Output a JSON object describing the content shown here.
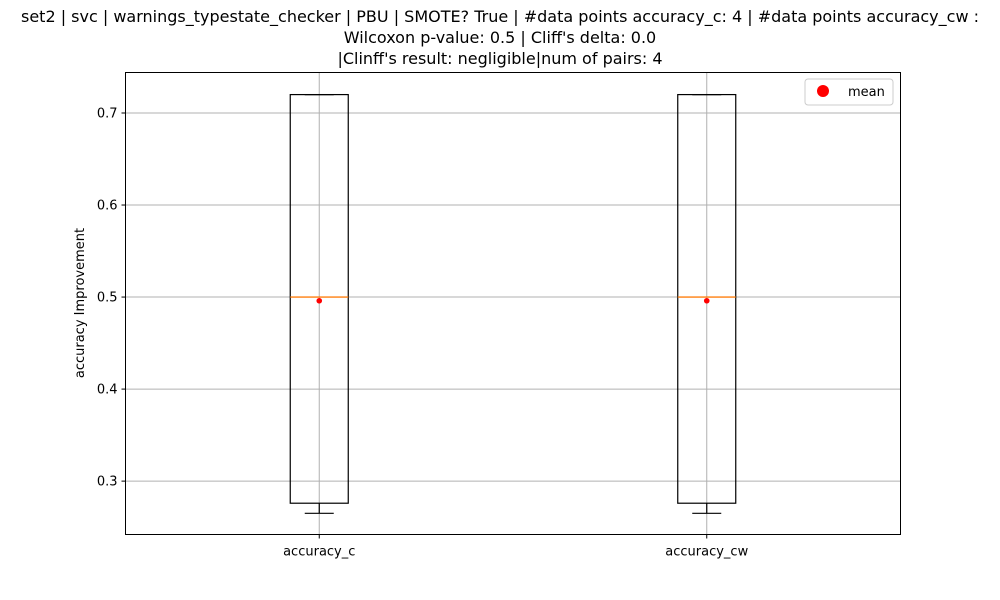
{
  "chart_data": {
    "type": "box",
    "title_lines": [
      "set2 | svc | warnings_typestate_checker | PBU | SMOTE? True | #data points accuracy_c: 4 | #data points accuracy_cw :",
      "Wilcoxon p-value: 0.5 | Cliff's delta: 0.0",
      "|Clinff's result: negligible|num of pairs: 4"
    ],
    "xlabel": "",
    "ylabel": "accuracy Improvement",
    "ylim": [
      0.242,
      0.744
    ],
    "yticks": [
      0.3,
      0.4,
      0.5,
      0.6,
      0.7
    ],
    "ytick_labels": [
      "0.3",
      "0.4",
      "0.5",
      "0.6",
      "0.7"
    ],
    "grid": true,
    "legend": {
      "position": "top-right",
      "entries": [
        "mean"
      ]
    },
    "categories": [
      "accuracy_c",
      "accuracy_cw"
    ],
    "boxes": [
      {
        "name": "accuracy_c",
        "whisker_low": 0.265,
        "q1": 0.276,
        "median": 0.5,
        "q3": 0.72,
        "whisker_high": 0.72,
        "mean": 0.496
      },
      {
        "name": "accuracy_cw",
        "whisker_low": 0.265,
        "q1": 0.276,
        "median": 0.5,
        "q3": 0.72,
        "whisker_high": 0.72,
        "mean": 0.496
      }
    ],
    "colors": {
      "box": "#000000",
      "median": "#ff7f0e",
      "mean": "#ff0000",
      "grid": "#b0b0b0"
    }
  }
}
